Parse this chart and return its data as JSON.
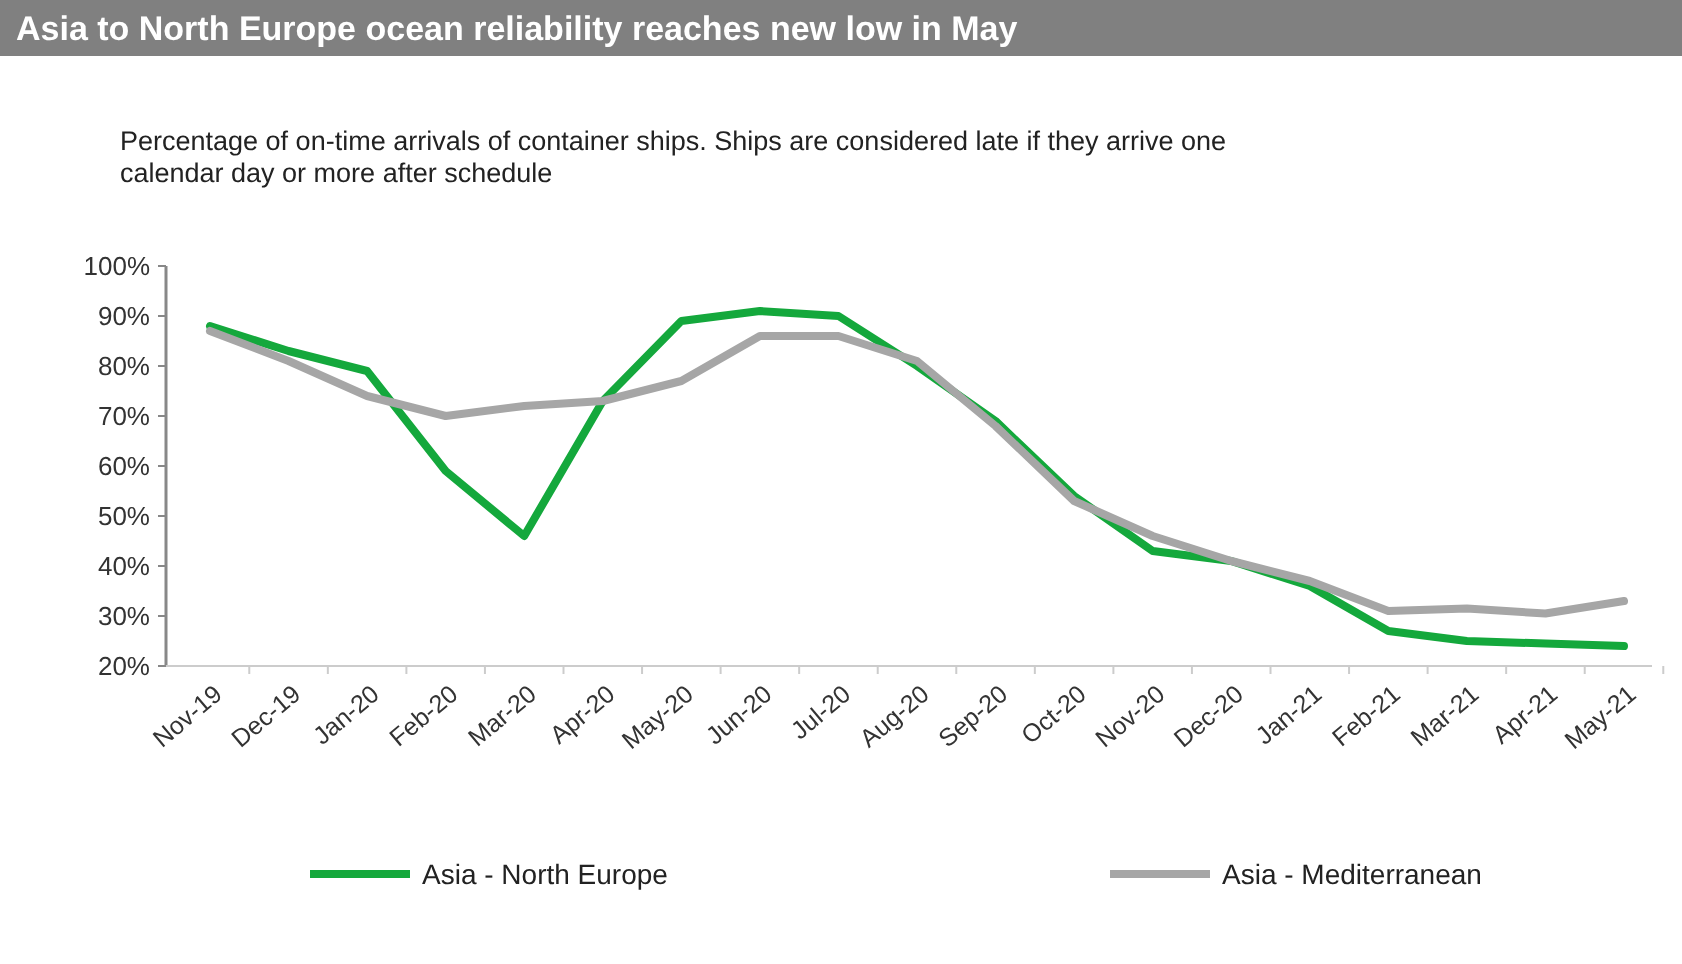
{
  "chart_data": {
    "type": "line",
    "title": "Asia to North Europe ocean reliability reaches new low in May",
    "subtitle": "Percentage of on-time arrivals of container ships. Ships are considered late if they arrive one calendar day or more after schedule",
    "categories": [
      "Nov-19",
      "Dec-19",
      "Jan-20",
      "Feb-20",
      "Mar-20",
      "Apr-20",
      "May-20",
      "Jun-20",
      "Jul-20",
      "Aug-20",
      "Sep-20",
      "Oct-20",
      "Nov-20",
      "Dec-20",
      "Jan-21",
      "Feb-21",
      "Mar-21",
      "Apr-21",
      "May-21"
    ],
    "series": [
      {
        "name": "Asia - North Europe",
        "color": "#14a83c",
        "values": [
          88,
          83,
          79,
          59,
          46,
          73,
          89,
          91,
          90,
          80,
          69,
          54,
          43,
          41,
          36,
          27,
          25,
          24.5,
          24
        ]
      },
      {
        "name": "Asia - Mediterranean",
        "color": "#a6a6a6",
        "values": [
          87,
          81,
          74,
          70,
          72,
          73,
          77,
          86,
          86,
          81,
          68,
          53,
          46,
          41,
          37,
          31,
          31.5,
          30.5,
          33
        ]
      }
    ],
    "ylim": [
      20,
      100
    ],
    "yticks": [
      {
        "value": 20,
        "label": "20%"
      },
      {
        "value": 30,
        "label": "30%"
      },
      {
        "value": 40,
        "label": "40%"
      },
      {
        "value": 50,
        "label": "50%"
      },
      {
        "value": 60,
        "label": "60%"
      },
      {
        "value": 70,
        "label": "70%"
      },
      {
        "value": 80,
        "label": "80%"
      },
      {
        "value": 90,
        "label": "90%"
      },
      {
        "value": 100,
        "label": "100%"
      }
    ],
    "grid": false,
    "legend": "bottom",
    "marker": "none",
    "line_style": "solid"
  }
}
